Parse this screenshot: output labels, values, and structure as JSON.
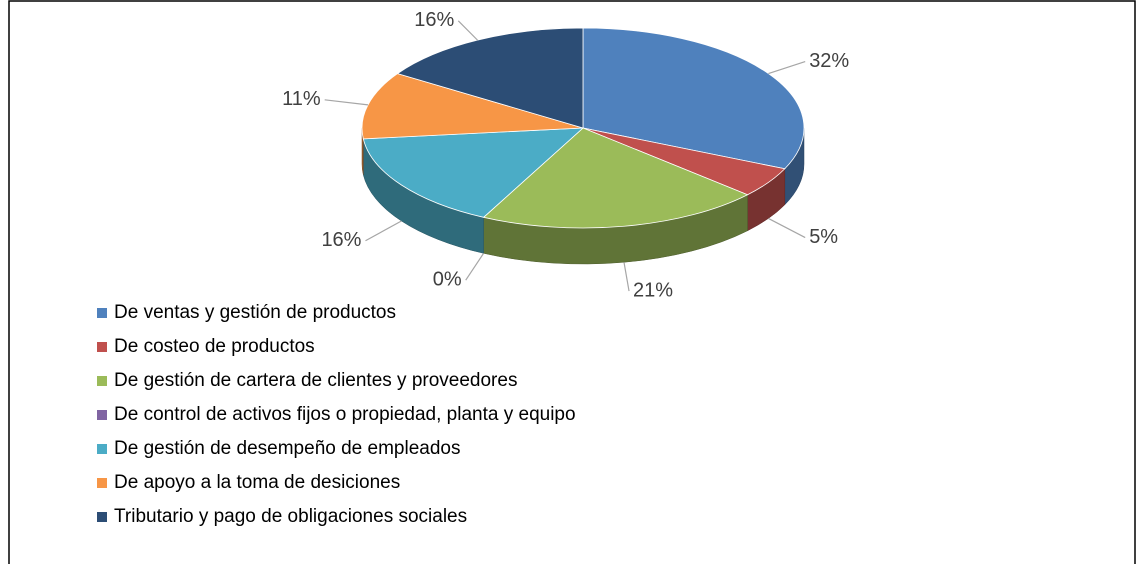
{
  "chart_data": {
    "type": "pie",
    "categories": [
      "De ventas y gestión de productos",
      "De costeo de productos",
      "De gestión de cartera de clientes y proveedores",
      "De control de activos fijos o propiedad, planta y equipo",
      "De gestión de desempeño de empleados",
      "De apoyo a la toma de desiciones",
      "Tributario y pago de obligaciones sociales"
    ],
    "values": [
      32,
      5,
      21,
      0,
      16,
      11,
      16
    ],
    "value_labels": [
      "32%",
      "5%",
      "21%",
      "0%",
      "16%",
      "11%",
      "16%"
    ],
    "colors": [
      "#4f81bd",
      "#c0504d",
      "#9bbb59",
      "#8064a2",
      "#4bacc6",
      "#f79646",
      "#2c4d75"
    ]
  }
}
